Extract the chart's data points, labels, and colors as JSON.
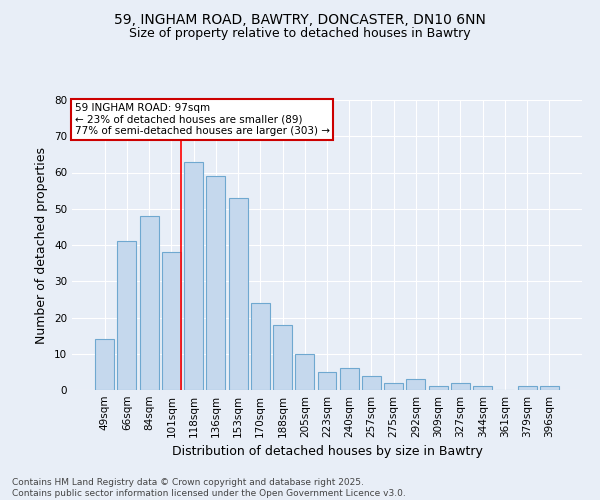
{
  "title_line1": "59, INGHAM ROAD, BAWTRY, DONCASTER, DN10 6NN",
  "title_line2": "Size of property relative to detached houses in Bawtry",
  "categories": [
    "49sqm",
    "66sqm",
    "84sqm",
    "101sqm",
    "118sqm",
    "136sqm",
    "153sqm",
    "170sqm",
    "188sqm",
    "205sqm",
    "223sqm",
    "240sqm",
    "257sqm",
    "275sqm",
    "292sqm",
    "309sqm",
    "327sqm",
    "344sqm",
    "361sqm",
    "379sqm",
    "396sqm"
  ],
  "values": [
    14,
    41,
    48,
    38,
    63,
    59,
    53,
    24,
    18,
    10,
    5,
    6,
    4,
    2,
    3,
    1,
    2,
    1,
    0,
    1,
    1
  ],
  "bar_color": "#c5d8ed",
  "bar_edge_color": "#6fa8d0",
  "background_color": "#e8eef7",
  "ylabel": "Number of detached properties",
  "xlabel": "Distribution of detached houses by size in Bawtry",
  "ylim": [
    0,
    80
  ],
  "yticks": [
    0,
    10,
    20,
    30,
    40,
    50,
    60,
    70,
    80
  ],
  "red_line_index": 3,
  "annotation_text": "59 INGHAM ROAD: 97sqm\n← 23% of detached houses are smaller (89)\n77% of semi-detached houses are larger (303) →",
  "annotation_box_color": "#ffffff",
  "annotation_box_edge": "#cc0000",
  "footnote": "Contains HM Land Registry data © Crown copyright and database right 2025.\nContains public sector information licensed under the Open Government Licence v3.0.",
  "title_fontsize": 10,
  "subtitle_fontsize": 9,
  "axis_label_fontsize": 9,
  "tick_fontsize": 7.5,
  "annotation_fontsize": 7.5,
  "footnote_fontsize": 6.5
}
